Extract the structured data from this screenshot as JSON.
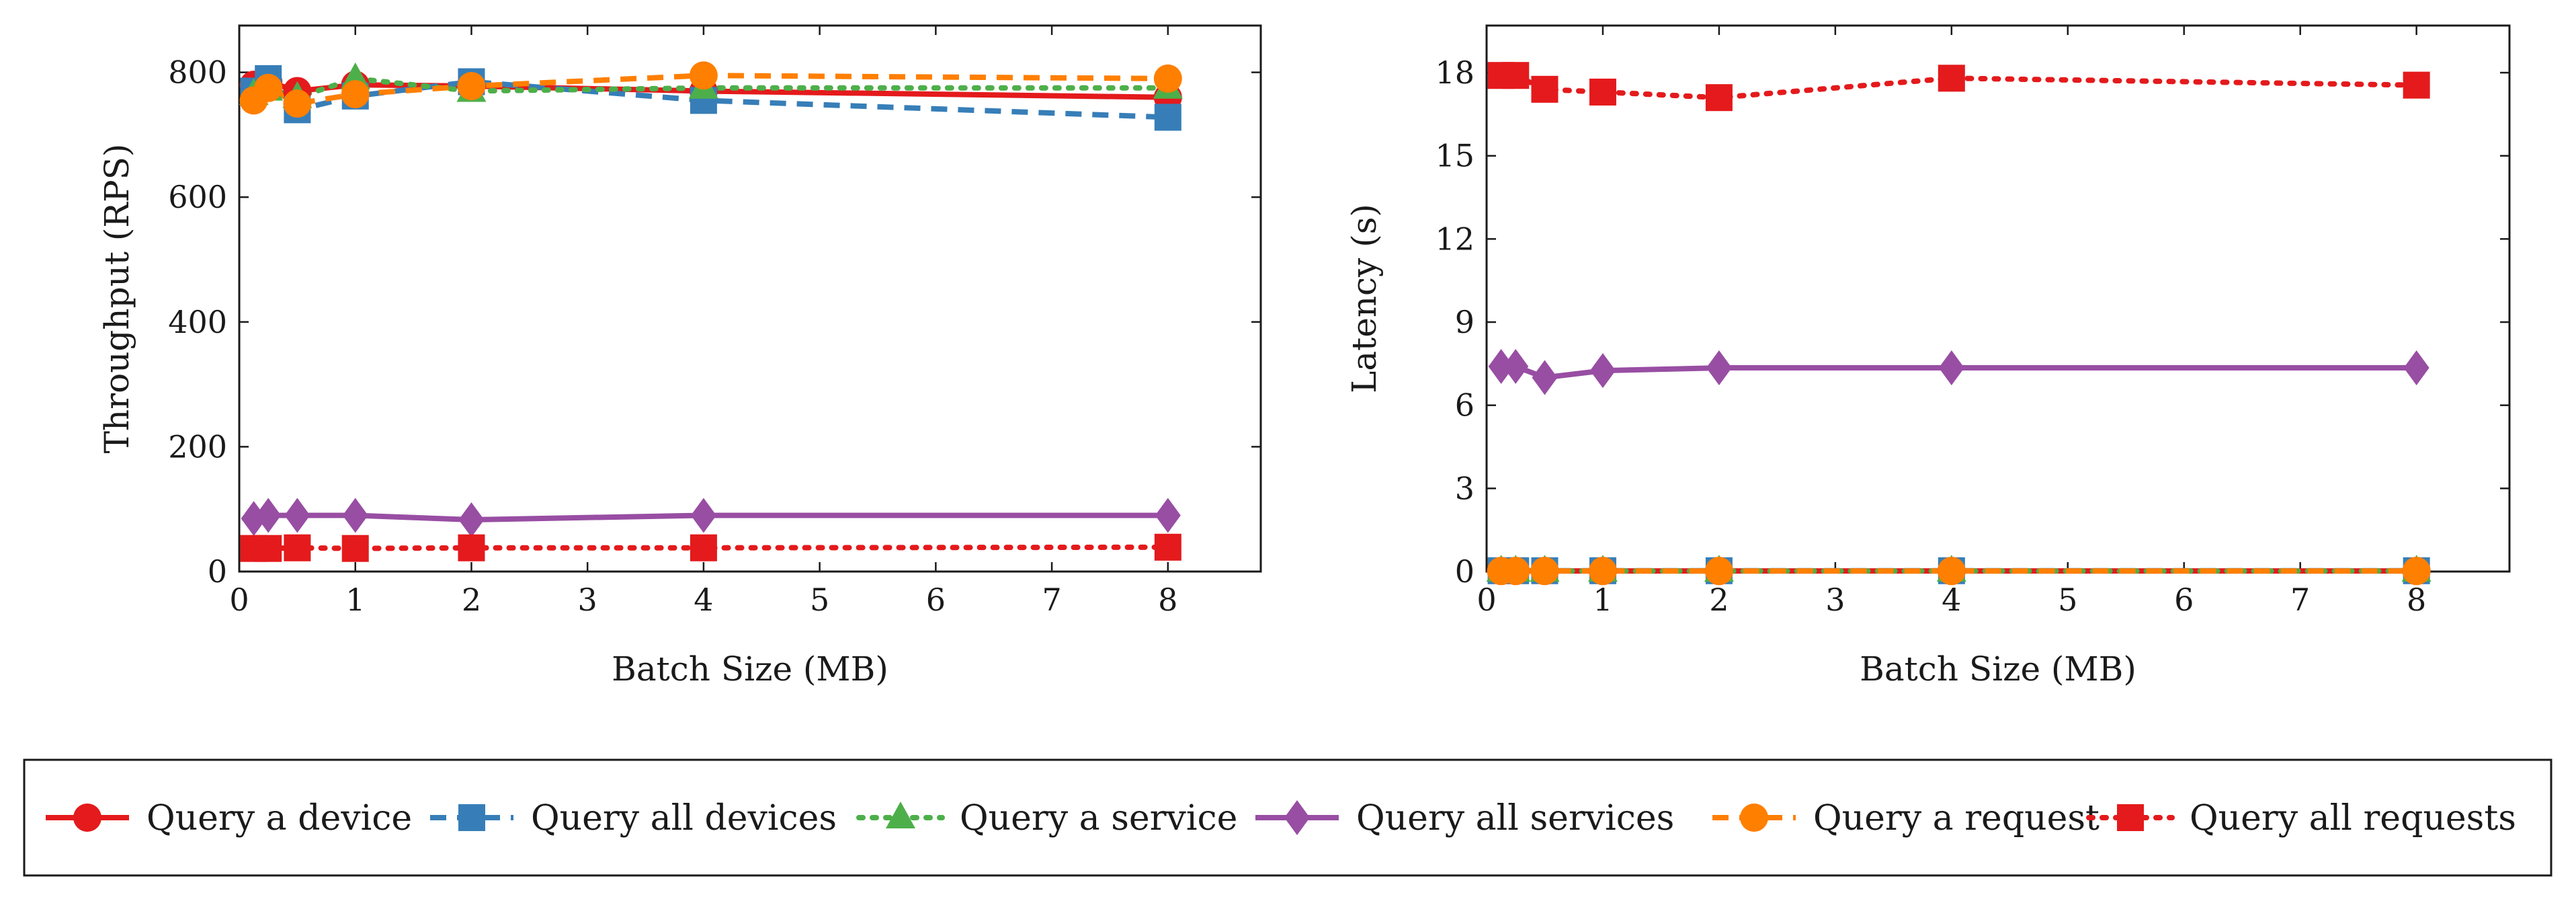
{
  "legend": {
    "entries": [
      {
        "key": "device",
        "label": "Query a device"
      },
      {
        "key": "all_devices",
        "label": "Query all devices"
      },
      {
        "key": "service",
        "label": "Query a service"
      },
      {
        "key": "all_services",
        "label": "Query all services"
      },
      {
        "key": "request",
        "label": "Query a request"
      },
      {
        "key": "all_requests",
        "label": "Query all requests"
      }
    ]
  },
  "series_styles": {
    "device": {
      "color": "#e41a1c",
      "dash": "solid",
      "marker": "circle"
    },
    "all_devices": {
      "color": "#377eb8",
      "dash": "dashed",
      "marker": "square"
    },
    "service": {
      "color": "#4daf4a",
      "dash": "dotted",
      "marker": "triangle"
    },
    "all_services": {
      "color": "#984ea3",
      "dash": "solid",
      "marker": "diamond"
    },
    "request": {
      "color": "#ff7f00",
      "dash": "dashed",
      "marker": "circle"
    },
    "all_requests": {
      "color": "#e41a1c",
      "dash": "dotted",
      "marker": "square"
    }
  },
  "chart_data": [
    {
      "type": "line",
      "title": "",
      "xlabel": "Batch Size (MB)",
      "ylabel": "Throughput (RPS)",
      "xlim": [
        0,
        8.8
      ],
      "ylim": [
        0,
        875
      ],
      "xticks": [
        0,
        1,
        2,
        3,
        4,
        5,
        6,
        7,
        8
      ],
      "yticks": [
        0,
        200,
        400,
        600,
        800
      ],
      "grid": false,
      "series": [
        {
          "key": "device",
          "name": "Query a device",
          "x": [
            0.125,
            0.25,
            0.5,
            1,
            2,
            4,
            8
          ],
          "y": [
            780,
            785,
            770,
            780,
            778,
            770,
            760
          ]
        },
        {
          "key": "all_devices",
          "name": "Query all devices",
          "x": [
            0.125,
            0.25,
            0.5,
            1,
            2,
            4,
            8
          ],
          "y": [
            770,
            790,
            740,
            762,
            785,
            755,
            728
          ]
        },
        {
          "key": "service",
          "name": "Query a service",
          "x": [
            0.125,
            0.25,
            0.5,
            1,
            2,
            4,
            8
          ],
          "y": [
            765,
            772,
            760,
            790,
            770,
            775,
            775
          ]
        },
        {
          "key": "all_services",
          "name": "Query all services",
          "x": [
            0.125,
            0.25,
            0.5,
            1,
            2,
            4,
            8
          ],
          "y": [
            85,
            90,
            90,
            90,
            83,
            90,
            90
          ]
        },
        {
          "key": "request",
          "name": "Query a request",
          "x": [
            0.125,
            0.25,
            0.5,
            1,
            2,
            4,
            8
          ],
          "y": [
            755,
            775,
            750,
            765,
            778,
            795,
            790
          ]
        },
        {
          "key": "all_requests",
          "name": "Query all requests",
          "x": [
            0.125,
            0.25,
            0.5,
            1,
            2,
            4,
            8
          ],
          "y": [
            37,
            37,
            38,
            37,
            38,
            38,
            39
          ]
        }
      ]
    },
    {
      "type": "line",
      "title": "",
      "xlabel": "Batch Size (MB)",
      "ylabel": "Latency (s)",
      "xlim": [
        0,
        8.8
      ],
      "ylim": [
        0,
        19.7
      ],
      "xticks": [
        0,
        1,
        2,
        3,
        4,
        5,
        6,
        7,
        8
      ],
      "yticks": [
        0,
        3,
        6,
        9,
        12,
        15,
        18
      ],
      "grid": false,
      "series": [
        {
          "key": "device",
          "name": "Query a device",
          "x": [
            0.125,
            0.25,
            0.5,
            1,
            2,
            4,
            8
          ],
          "y": [
            0.02,
            0.02,
            0.02,
            0.02,
            0.02,
            0.02,
            0.02
          ]
        },
        {
          "key": "all_devices",
          "name": "Query all devices",
          "x": [
            0.125,
            0.25,
            0.5,
            1,
            2,
            4,
            8
          ],
          "y": [
            0.03,
            0.03,
            0.03,
            0.03,
            0.03,
            0.03,
            0.03
          ]
        },
        {
          "key": "service",
          "name": "Query a service",
          "x": [
            0.125,
            0.25,
            0.5,
            1,
            2,
            4,
            8
          ],
          "y": [
            0.02,
            0.02,
            0.02,
            0.02,
            0.02,
            0.02,
            0.02
          ]
        },
        {
          "key": "all_services",
          "name": "Query all services",
          "x": [
            0.125,
            0.25,
            0.5,
            1,
            2,
            4,
            8
          ],
          "y": [
            7.4,
            7.4,
            7.0,
            7.25,
            7.35,
            7.35,
            7.35
          ]
        },
        {
          "key": "request",
          "name": "Query a request",
          "x": [
            0.125,
            0.25,
            0.5,
            1,
            2,
            4,
            8
          ],
          "y": [
            0.02,
            0.02,
            0.02,
            0.02,
            0.02,
            0.02,
            0.02
          ]
        },
        {
          "key": "all_requests",
          "name": "Query all requests",
          "x": [
            0.125,
            0.25,
            0.5,
            1,
            2,
            4,
            8
          ],
          "y": [
            17.9,
            17.9,
            17.4,
            17.3,
            17.1,
            17.8,
            17.55
          ]
        }
      ]
    }
  ]
}
